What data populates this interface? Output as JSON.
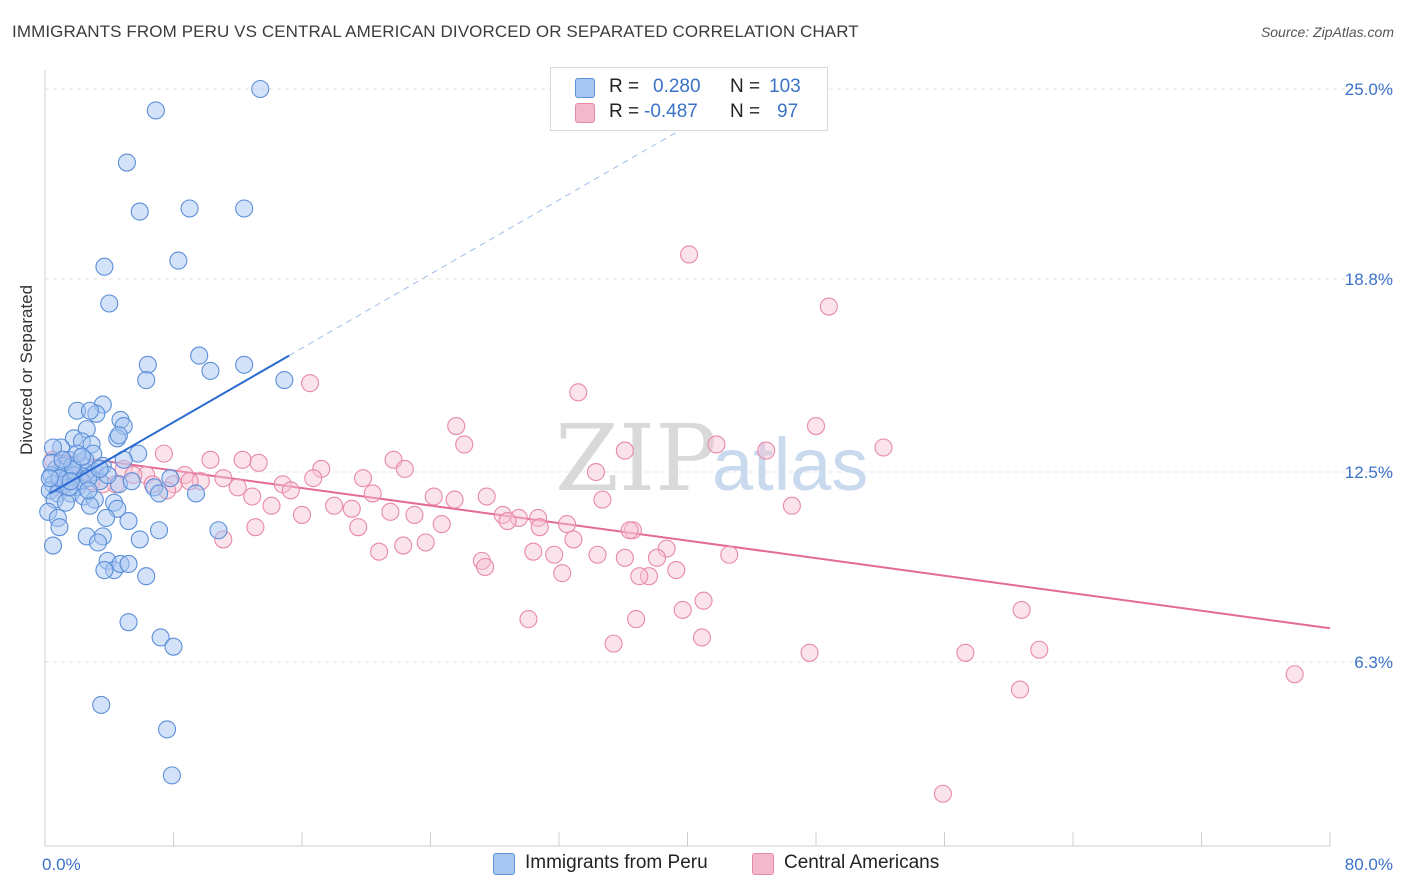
{
  "title": "IMMIGRANTS FROM PERU VS CENTRAL AMERICAN DIVORCED OR SEPARATED CORRELATION CHART",
  "source": "Source: ZipAtlas.com",
  "watermark": {
    "zip": "ZIP",
    "atlas": "atlas"
  },
  "legend": {
    "rows": [
      {
        "r_label": "R =",
        "r_value": "0.280",
        "n_label": "N =",
        "n_value": "103",
        "color": "#a7c6f1"
      },
      {
        "r_label": "R =",
        "r_value": "-0.487",
        "n_label": "N =",
        "n_value": "97",
        "color": "#f4b8cc"
      }
    ]
  },
  "bottom_legend": [
    {
      "label": "Immigrants from Peru",
      "color": "#a7c6f1"
    },
    {
      "label": "Central Americans",
      "color": "#f4b8cc"
    }
  ],
  "colors": {
    "blue_point_fill": "#a7c6f1",
    "blue_point_stroke": "#5b8fd9",
    "blue_line": "#2a6bd1",
    "pink_point_fill": "#f6c0d2",
    "pink_point_stroke": "#e889a9",
    "pink_line": "#e36a96",
    "grid": "#e3e3e3",
    "tick_label": "#3a72c8"
  },
  "chart_data": {
    "type": "scatter",
    "title": "IMMIGRANTS FROM PERU VS CENTRAL AMERICAN DIVORCED OR SEPARATED CORRELATION CHART",
    "xlabel": "",
    "ylabel": "Divorced or Separated",
    "xlim": [
      0,
      80
    ],
    "ylim": [
      0,
      26.5
    ],
    "x_tick_labels": [
      {
        "value": 0,
        "label": "0.0%"
      },
      {
        "value": 80,
        "label": "80.0%"
      }
    ],
    "y_ticks": [
      {
        "value": 6.3,
        "label": "6.3%"
      },
      {
        "value": 12.5,
        "label": "12.5%"
      },
      {
        "value": 18.8,
        "label": "18.8%"
      },
      {
        "value": 25.0,
        "label": "25.0%"
      }
    ],
    "x_minor_ticks": [
      8,
      16,
      24,
      32,
      40,
      48,
      56,
      64,
      72,
      80
    ],
    "series": [
      {
        "name": "Immigrants from Peru",
        "r": 0.28,
        "n": 103,
        "trend": {
          "x0": 0.3,
          "y0": 11.8,
          "x1": 15.2,
          "y1": 16.3,
          "dashed_to_x": 41.0,
          "dashed_to_y": 24.1
        },
        "points": [
          [
            13.4,
            25.0
          ],
          [
            6.9,
            24.3
          ],
          [
            5.1,
            22.6
          ],
          [
            5.9,
            21.0
          ],
          [
            9.0,
            21.1
          ],
          [
            12.4,
            21.1
          ],
          [
            8.3,
            19.4
          ],
          [
            3.7,
            19.2
          ],
          [
            4.0,
            18.0
          ],
          [
            9.6,
            16.3
          ],
          [
            6.4,
            16.0
          ],
          [
            12.4,
            16.0
          ],
          [
            10.3,
            15.8
          ],
          [
            6.3,
            15.5
          ],
          [
            14.9,
            15.5
          ],
          [
            3.6,
            14.7
          ],
          [
            2.0,
            14.5
          ],
          [
            3.2,
            14.4
          ],
          [
            2.8,
            14.5
          ],
          [
            4.7,
            14.2
          ],
          [
            4.9,
            14.0
          ],
          [
            2.6,
            13.9
          ],
          [
            1.8,
            13.6
          ],
          [
            4.5,
            13.6
          ],
          [
            4.6,
            13.7
          ],
          [
            2.3,
            13.5
          ],
          [
            1.0,
            13.3
          ],
          [
            2.9,
            13.4
          ],
          [
            0.5,
            13.3
          ],
          [
            3.0,
            13.1
          ],
          [
            5.8,
            13.1
          ],
          [
            1.5,
            12.9
          ],
          [
            2.2,
            12.8
          ],
          [
            1.1,
            12.7
          ],
          [
            0.7,
            12.6
          ],
          [
            1.8,
            12.6
          ],
          [
            2.6,
            12.5
          ],
          [
            3.1,
            12.5
          ],
          [
            0.4,
            12.4
          ],
          [
            0.9,
            12.3
          ],
          [
            1.4,
            12.3
          ],
          [
            1.8,
            12.4
          ],
          [
            2.3,
            12.2
          ],
          [
            0.5,
            12.1
          ],
          [
            1.2,
            12.1
          ],
          [
            2.0,
            12.0
          ],
          [
            3.4,
            12.2
          ],
          [
            4.6,
            12.1
          ],
          [
            5.4,
            12.2
          ],
          [
            6.8,
            12.0
          ],
          [
            7.8,
            12.3
          ],
          [
            9.4,
            11.8
          ],
          [
            0.3,
            11.9
          ],
          [
            0.8,
            11.8
          ],
          [
            1.6,
            11.8
          ],
          [
            2.4,
            11.7
          ],
          [
            3.1,
            11.6
          ],
          [
            4.3,
            11.5
          ],
          [
            7.1,
            11.8
          ],
          [
            0.6,
            11.6
          ],
          [
            1.3,
            11.5
          ],
          [
            2.8,
            11.4
          ],
          [
            4.5,
            11.3
          ],
          [
            0.2,
            11.2
          ],
          [
            0.8,
            11.0
          ],
          [
            3.8,
            11.0
          ],
          [
            5.2,
            10.9
          ],
          [
            0.9,
            10.7
          ],
          [
            7.1,
            10.6
          ],
          [
            10.8,
            10.6
          ],
          [
            2.6,
            10.4
          ],
          [
            3.6,
            10.4
          ],
          [
            3.3,
            10.2
          ],
          [
            5.9,
            10.3
          ],
          [
            0.5,
            10.1
          ],
          [
            3.9,
            9.6
          ],
          [
            4.3,
            9.3
          ],
          [
            4.7,
            9.5
          ],
          [
            6.3,
            9.1
          ],
          [
            3.7,
            9.3
          ],
          [
            5.2,
            9.5
          ],
          [
            5.2,
            7.6
          ],
          [
            7.2,
            7.1
          ],
          [
            8.0,
            6.8
          ],
          [
            3.5,
            4.9
          ],
          [
            7.6,
            4.1
          ],
          [
            7.9,
            2.6
          ],
          [
            2.5,
            12.9
          ],
          [
            1.7,
            12.7
          ],
          [
            3.6,
            12.7
          ],
          [
            4.9,
            12.9
          ],
          [
            0.4,
            12.8
          ],
          [
            2.0,
            13.1
          ],
          [
            1.5,
            12.0
          ],
          [
            0.9,
            12.3
          ],
          [
            2.7,
            12.3
          ],
          [
            3.9,
            12.4
          ],
          [
            1.1,
            12.9
          ],
          [
            2.3,
            13.0
          ],
          [
            0.3,
            12.3
          ],
          [
            3.4,
            12.6
          ],
          [
            2.7,
            11.9
          ],
          [
            1.6,
            12.2
          ]
        ]
      },
      {
        "name": "Central Americans",
        "r": -0.487,
        "n": 97,
        "trend": {
          "x0": 0.3,
          "y0": 13.1,
          "x1": 80.0,
          "y1": 7.4
        },
        "points": [
          [
            40.1,
            19.6
          ],
          [
            48.8,
            17.9
          ],
          [
            16.5,
            15.4
          ],
          [
            33.2,
            15.1
          ],
          [
            25.6,
            14.0
          ],
          [
            48.0,
            14.0
          ],
          [
            26.1,
            13.4
          ],
          [
            41.8,
            13.4
          ],
          [
            52.2,
            13.3
          ],
          [
            36.1,
            13.2
          ],
          [
            44.9,
            13.2
          ],
          [
            7.4,
            13.1
          ],
          [
            10.3,
            12.9
          ],
          [
            12.3,
            12.9
          ],
          [
            13.3,
            12.8
          ],
          [
            21.7,
            12.9
          ],
          [
            4.9,
            12.6
          ],
          [
            17.2,
            12.6
          ],
          [
            22.4,
            12.6
          ],
          [
            34.3,
            12.5
          ],
          [
            6.3,
            12.4
          ],
          [
            8.7,
            12.4
          ],
          [
            11.1,
            12.3
          ],
          [
            16.7,
            12.3
          ],
          [
            19.8,
            12.3
          ],
          [
            14.8,
            12.1
          ],
          [
            2.9,
            12.2
          ],
          [
            4.4,
            12.1
          ],
          [
            6.7,
            12.1
          ],
          [
            8.0,
            12.1
          ],
          [
            9.7,
            12.2
          ],
          [
            12.0,
            12.0
          ],
          [
            15.3,
            11.9
          ],
          [
            20.4,
            11.8
          ],
          [
            24.2,
            11.7
          ],
          [
            25.5,
            11.6
          ],
          [
            27.5,
            11.7
          ],
          [
            12.9,
            11.7
          ],
          [
            7.6,
            11.9
          ],
          [
            3.6,
            12.1
          ],
          [
            1.5,
            12.2
          ],
          [
            18.0,
            11.4
          ],
          [
            19.1,
            11.3
          ],
          [
            21.5,
            11.2
          ],
          [
            14.1,
            11.4
          ],
          [
            16.0,
            11.1
          ],
          [
            23.0,
            11.1
          ],
          [
            29.5,
            11.0
          ],
          [
            28.5,
            11.1
          ],
          [
            30.7,
            11.0
          ],
          [
            34.7,
            11.6
          ],
          [
            28.8,
            10.9
          ],
          [
            24.7,
            10.8
          ],
          [
            19.5,
            10.7
          ],
          [
            30.8,
            10.7
          ],
          [
            32.5,
            10.8
          ],
          [
            36.6,
            10.6
          ],
          [
            36.4,
            10.6
          ],
          [
            13.1,
            10.7
          ],
          [
            11.1,
            10.3
          ],
          [
            22.3,
            10.1
          ],
          [
            23.7,
            10.2
          ],
          [
            32.9,
            10.3
          ],
          [
            38.7,
            10.0
          ],
          [
            20.8,
            9.9
          ],
          [
            30.4,
            9.9
          ],
          [
            34.4,
            9.8
          ],
          [
            42.6,
            9.8
          ],
          [
            27.2,
            9.6
          ],
          [
            31.7,
            9.8
          ],
          [
            36.1,
            9.7
          ],
          [
            38.1,
            9.7
          ],
          [
            27.4,
            9.4
          ],
          [
            32.2,
            9.2
          ],
          [
            37.6,
            9.1
          ],
          [
            39.3,
            9.3
          ],
          [
            37.0,
            9.1
          ],
          [
            41.0,
            8.3
          ],
          [
            39.7,
            8.0
          ],
          [
            30.1,
            7.7
          ],
          [
            36.8,
            7.7
          ],
          [
            60.8,
            8.0
          ],
          [
            40.9,
            7.1
          ],
          [
            35.4,
            6.9
          ],
          [
            47.6,
            6.6
          ],
          [
            57.3,
            6.6
          ],
          [
            61.9,
            6.7
          ],
          [
            77.8,
            5.9
          ],
          [
            60.7,
            5.4
          ],
          [
            55.9,
            2.0
          ],
          [
            46.5,
            11.4
          ],
          [
            0.5,
            12.9
          ],
          [
            1.2,
            12.6
          ],
          [
            2.2,
            12.3
          ],
          [
            0.9,
            12.0
          ],
          [
            5.5,
            12.4
          ],
          [
            9.0,
            12.2
          ]
        ]
      }
    ]
  }
}
